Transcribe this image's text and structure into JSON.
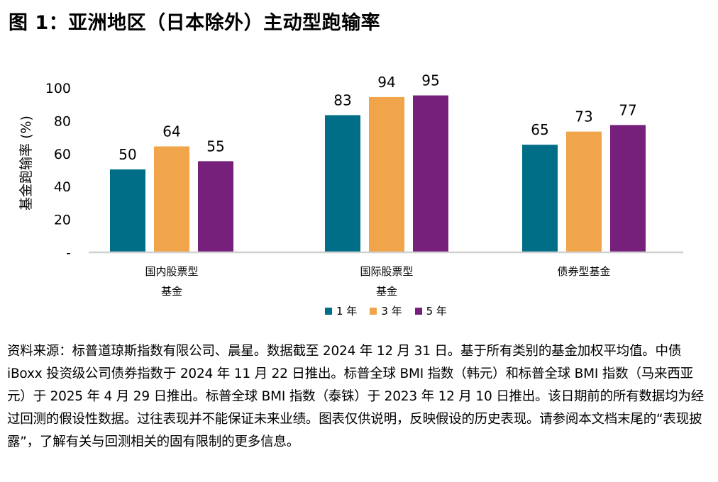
{
  "title": "图 1：亚洲地区（日本除外）主动型跑输率",
  "chart_data": {
    "type": "bar",
    "title": "图 1：亚洲地区（日本除外）主动型跑输率",
    "xlabel": "",
    "ylabel": "基金跑输率 (%)",
    "ylim": [
      0,
      100
    ],
    "yticks": [
      "-",
      "20",
      "40",
      "60",
      "80",
      "100"
    ],
    "grid": false,
    "legend": "bottom",
    "categories": [
      [
        "国内股票型",
        "基金"
      ],
      [
        "国际股票型",
        "基金"
      ],
      [
        "债券型基金"
      ]
    ],
    "series": [
      {
        "name": "1 年",
        "color": "#006E87",
        "values": [
          50,
          83,
          65
        ]
      },
      {
        "name": "3 年",
        "color": "#F0A54A",
        "values": [
          64,
          94,
          73
        ]
      },
      {
        "name": "5 年",
        "color": "#76207B",
        "values": [
          55,
          95,
          77
        ]
      }
    ]
  },
  "note": "资料来源：标普道琼斯指数有限公司、晨星。数据截至 2024 年 12 月 31 日。基于所有类别的基金加权平均值。中债 iBoxx 投资级公司债券指数于 2024 年 11 月 22 日推出。标普全球 BMI 指数（韩元）和标普全球 BMI 指数（马来西亚元）于 2025 年 4 月 29 日推出。标普全球 BMI 指数（泰铢）于 2023 年 12 月 10 日推出。该日期前的所有数据均为经过回测的假设性数据。过往表现并不能保证未来业绩。图表仅供说明，反映假设的历史表现。请参阅本文档末尾的“表现披露”，了解有关与回测相关的固有限制的更多信息。"
}
